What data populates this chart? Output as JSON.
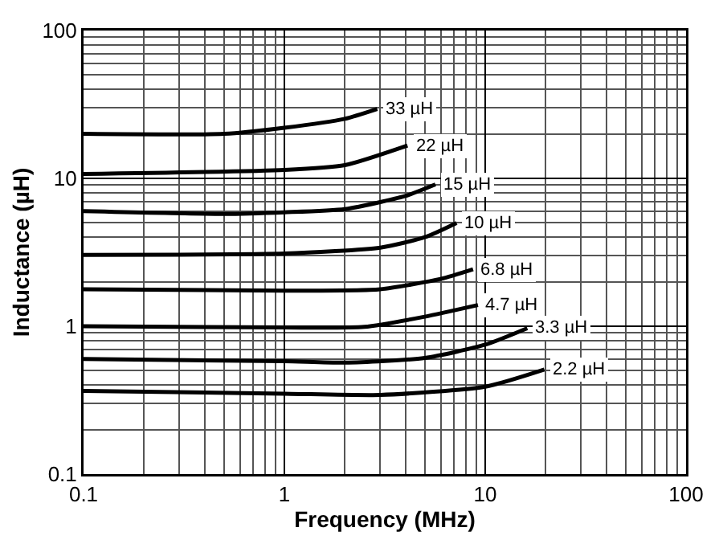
{
  "chart_data": {
    "type": "line",
    "xlabel": "Frequency (MHz)",
    "ylabel": "Inductance (µH)",
    "log": "xy",
    "grid": true,
    "legend": false,
    "marker": "none",
    "line_style": "solid",
    "xlim": [
      0.1,
      100
    ],
    "xticks": [
      0.1,
      1,
      10,
      100
    ],
    "ylim": [
      0.1,
      100
    ],
    "yticks": [
      0.1,
      1,
      10,
      100
    ],
    "series": [
      {
        "name": "33 µH",
        "color": "#000000",
        "x": [
          0.1,
          0.5,
          1,
          2,
          2.9
        ],
        "values": [
          20,
          20,
          22,
          25.3,
          29.5
        ]
      },
      {
        "name": "22 µH",
        "color": "#000000",
        "x": [
          0.1,
          1,
          2,
          4.1
        ],
        "values": [
          10.7,
          11.4,
          12.3,
          16.7
        ]
      },
      {
        "name": "15 µH",
        "color": "#000000",
        "x": [
          0.1,
          0.5,
          1,
          2,
          4,
          5.65
        ],
        "values": [
          6,
          5.75,
          5.9,
          6.2,
          7.6,
          9.1
        ]
      },
      {
        "name": "10 µH",
        "color": "#000000",
        "x": [
          0.1,
          1,
          3,
          5,
          7.2
        ],
        "values": [
          3.04,
          3.1,
          3.4,
          4,
          5
        ]
      },
      {
        "name": "6.8 µH",
        "color": "#000000",
        "x": [
          0.1,
          1,
          3,
          6,
          8.7
        ],
        "values": [
          1.78,
          1.74,
          1.78,
          2.09,
          2.43
        ]
      },
      {
        "name": "4.7 µH",
        "color": "#000000",
        "x": [
          0.1,
          1,
          2.5,
          5,
          9.2
        ],
        "values": [
          1,
          0.98,
          0.99,
          1.16,
          1.39
        ]
      },
      {
        "name": "3.3 µH",
        "color": "#000000",
        "x": [
          0.1,
          1,
          2,
          5,
          10,
          16.2
        ],
        "values": [
          0.6,
          0.58,
          0.567,
          0.61,
          0.75,
          0.97
        ]
      },
      {
        "name": "2.2 µH",
        "color": "#000000",
        "x": [
          0.1,
          1,
          3,
          10,
          19.7
        ],
        "values": [
          0.365,
          0.35,
          0.343,
          0.39,
          0.51
        ]
      }
    ]
  }
}
